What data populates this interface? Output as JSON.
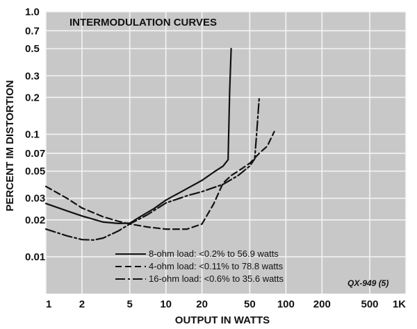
{
  "chart_data": {
    "type": "line",
    "title": "INTERMODULATION CURVES",
    "xlabel": "OUTPUT IN WATTS",
    "ylabel": "PERCENT IM DISTORTION",
    "x_scale": "log",
    "y_scale": "log",
    "xlim": [
      1,
      1000
    ],
    "ylim": [
      0.005,
      1.0
    ],
    "grid": true,
    "x_ticks": [
      {
        "value": 1,
        "label": "1"
      },
      {
        "value": 2,
        "label": "2"
      },
      {
        "value": 5,
        "label": "5"
      },
      {
        "value": 10,
        "label": "10"
      },
      {
        "value": 20,
        "label": "20"
      },
      {
        "value": 50,
        "label": "50"
      },
      {
        "value": 100,
        "label": "100"
      },
      {
        "value": 200,
        "label": "200"
      },
      {
        "value": 500,
        "label": "500"
      },
      {
        "value": 1000,
        "label": "1K"
      }
    ],
    "y_ticks": [
      {
        "value": 1.0,
        "label": "1.0"
      },
      {
        "value": 0.7,
        "label": "0.7"
      },
      {
        "value": 0.5,
        "label": "0.5"
      },
      {
        "value": 0.3,
        "label": "0.3"
      },
      {
        "value": 0.2,
        "label": "0.2"
      },
      {
        "value": 0.1,
        "label": "0.1"
      },
      {
        "value": 0.07,
        "label": "0.07"
      },
      {
        "value": 0.05,
        "label": "0.05"
      },
      {
        "value": 0.03,
        "label": "0.03"
      },
      {
        "value": 0.02,
        "label": "0.02"
      },
      {
        "value": 0.01,
        "label": "0.01"
      }
    ],
    "series": [
      {
        "name": "8-ohm load: <0.2% to 56.9 watts",
        "style": "solid",
        "x": [
          1,
          1.5,
          2,
          3,
          4,
          5,
          6,
          8,
          10,
          15,
          20,
          25,
          30,
          33,
          34,
          35
        ],
        "y": [
          0.0272,
          0.0237,
          0.0215,
          0.0192,
          0.0187,
          0.0188,
          0.021,
          0.0248,
          0.029,
          0.036,
          0.042,
          0.049,
          0.055,
          0.062,
          0.22,
          0.5
        ]
      },
      {
        "name": "4-ohm load: <0.11% to 78.8 watts",
        "style": "dashed",
        "x": [
          1,
          1.5,
          2,
          3,
          4,
          5,
          7,
          10,
          15,
          20,
          25,
          30,
          35,
          40,
          50,
          60,
          70,
          80
        ],
        "y": [
          0.0375,
          0.03,
          0.025,
          0.0212,
          0.0195,
          0.0185,
          0.0175,
          0.0168,
          0.0168,
          0.0185,
          0.027,
          0.04,
          0.046,
          0.05,
          0.058,
          0.07,
          0.08,
          0.105
        ]
      },
      {
        "name": "16-ohm load: <0.6% to 35.6 watts",
        "style": "dashdot",
        "x": [
          1,
          1.5,
          2,
          2.5,
          3,
          4,
          5,
          7,
          10,
          15,
          20,
          30,
          40,
          50,
          55,
          57,
          60
        ],
        "y": [
          0.0168,
          0.0148,
          0.0138,
          0.0137,
          0.0142,
          0.0162,
          0.0185,
          0.022,
          0.0275,
          0.0315,
          0.034,
          0.039,
          0.046,
          0.055,
          0.063,
          0.1,
          0.2
        ]
      }
    ]
  },
  "figure_ref": "QX-949 (5)"
}
